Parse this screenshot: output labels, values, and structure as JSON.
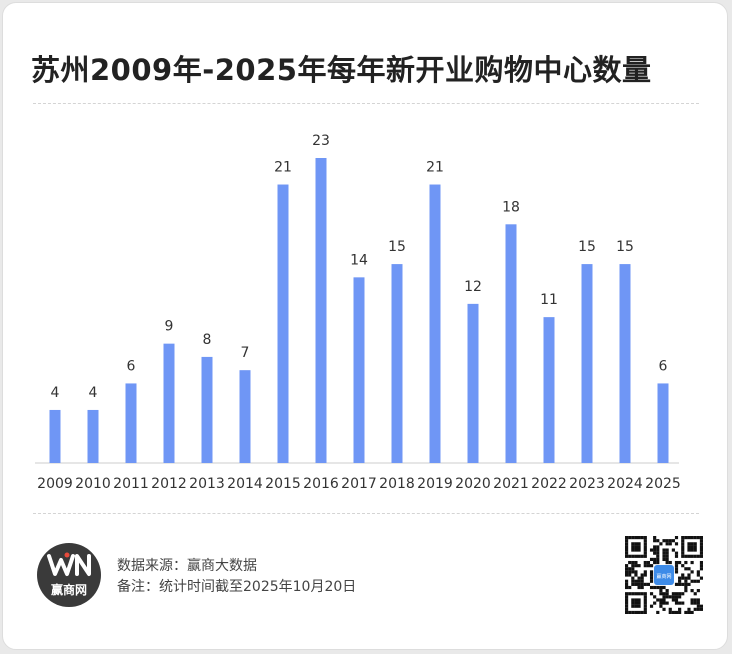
{
  "title": "苏州2009年-2025年每年新开业购物中心数量",
  "chart_data": {
    "type": "bar",
    "title": "苏州2009年-2025年每年新开业购物中心数量",
    "categories": [
      "2009",
      "2010",
      "2011",
      "2012",
      "2013",
      "2014",
      "2015",
      "2016",
      "2017",
      "2018",
      "2019",
      "2020",
      "2021",
      "2022",
      "2023",
      "2024",
      "2025"
    ],
    "values": [
      4,
      4,
      6,
      9,
      8,
      7,
      21,
      23,
      14,
      15,
      21,
      12,
      18,
      11,
      15,
      15,
      6
    ],
    "xlabel": "",
    "ylabel": "",
    "ylim": [
      0,
      23
    ],
    "grid": false,
    "data_labels": true,
    "bar_color": "#6f96f5"
  },
  "footer": {
    "source": "数据来源：赢商大数据",
    "note": "备注：统计时间截至2025年10月20日",
    "logo_text": "赢商网",
    "qr_badge_text": "赢商网"
  },
  "colors": {
    "bar": "#6f96f5",
    "logo_bg": "#3a3a3a",
    "qr_accent": "#3d8be8"
  }
}
